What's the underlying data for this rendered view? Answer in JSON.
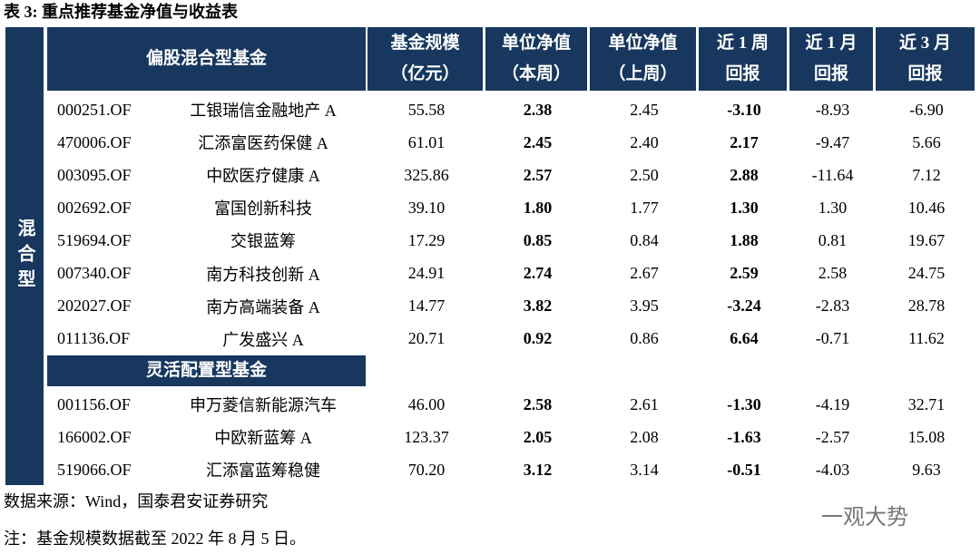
{
  "title": "表 3: 重点推荐基金净值与收益表",
  "table": {
    "group": "混合型",
    "column_headers": [
      [
        "基金规模",
        "（亿元）"
      ],
      [
        "单位净值",
        "（本周）"
      ],
      [
        "单位净值",
        "（上周）"
      ],
      [
        "近 1 周",
        "回报"
      ],
      [
        "近 1 月",
        "回报"
      ],
      [
        "近 3 月",
        "回报"
      ]
    ],
    "sections": [
      {
        "label": "偏股混合型基金",
        "rows": [
          [
            "000251.OF",
            "工银瑞信金融地产 A",
            "55.58",
            "2.38",
            "2.45",
            "-3.10",
            "-8.93",
            "-6.90"
          ],
          [
            "470006.OF",
            "汇添富医药保健 A",
            "61.01",
            "2.45",
            "2.40",
            "2.17",
            "-9.47",
            "5.66"
          ],
          [
            "003095.OF",
            "中欧医疗健康 A",
            "325.86",
            "2.57",
            "2.50",
            "2.88",
            "-11.64",
            "7.12"
          ],
          [
            "002692.OF",
            "富国创新科技",
            "39.10",
            "1.80",
            "1.77",
            "1.30",
            "1.30",
            "10.46"
          ],
          [
            "519694.OF",
            "交银蓝筹",
            "17.29",
            "0.85",
            "0.84",
            "1.88",
            "0.81",
            "19.67"
          ],
          [
            "007340.OF",
            "南方科技创新 A",
            "24.91",
            "2.74",
            "2.67",
            "2.59",
            "2.58",
            "24.75"
          ],
          [
            "202027.OF",
            "南方高端装备 A",
            "14.77",
            "3.82",
            "3.95",
            "-3.24",
            "-2.83",
            "28.78"
          ],
          [
            "011136.OF",
            "广发盛兴 A",
            "20.71",
            "0.92",
            "0.86",
            "6.64",
            "-0.71",
            "11.62"
          ]
        ]
      },
      {
        "label": "灵活配置型基金",
        "rows": [
          [
            "001156.OF",
            "申万菱信新能源汽车",
            "46.00",
            "2.58",
            "2.61",
            "-1.30",
            "-4.19",
            "32.71"
          ],
          [
            "166002.OF",
            "中欧新蓝筹 A",
            "123.37",
            "2.05",
            "2.08",
            "-1.63",
            "-2.57",
            "15.08"
          ],
          [
            "519066.OF",
            "汇添富蓝筹稳健",
            "70.20",
            "3.12",
            "3.14",
            "-0.51",
            "-4.03",
            "9.63"
          ]
        ]
      }
    ]
  },
  "source": "数据来源：Wind，国泰君安证券研究",
  "note": "注：基金规模数据截至 2022 年 8 月 5 日。",
  "watermark": "一观大势"
}
